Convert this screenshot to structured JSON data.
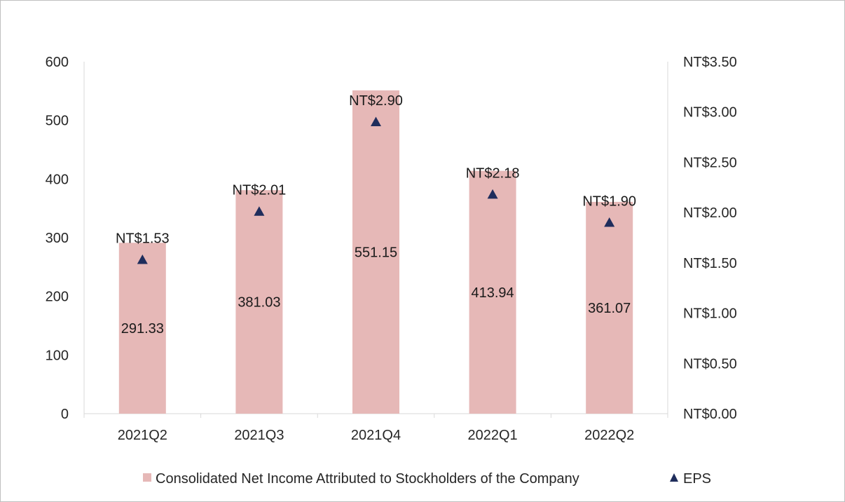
{
  "chart_data": {
    "type": "bar",
    "title": "",
    "categories": [
      "2021Q2",
      "2021Q3",
      "2021Q4",
      "2022Q1",
      "2022Q2"
    ],
    "series": [
      {
        "name": "Consolidated Net Income Attributed to Stockholders of the Company",
        "type": "bar",
        "axis": "left",
        "color": "#e6b8b7",
        "values": [
          291.33,
          381.03,
          551.15,
          413.94,
          361.07
        ],
        "labels": [
          "291.33",
          "381.03",
          "551.15",
          "413.94",
          "361.07"
        ]
      },
      {
        "name": "EPS",
        "type": "scatter",
        "marker": "triangle",
        "axis": "right",
        "color": "#1f2d5c",
        "values": [
          1.53,
          2.01,
          2.9,
          2.18,
          1.9
        ],
        "labels": [
          "NT$1.53",
          "NT$2.01",
          "NT$2.90",
          "NT$2.18",
          "NT$1.90"
        ]
      }
    ],
    "y_left": {
      "lim": [
        0,
        600
      ],
      "ticks": [
        0,
        100,
        200,
        300,
        400,
        500,
        600
      ],
      "tick_labels": [
        "0",
        "100",
        "200",
        "300",
        "400",
        "500",
        "600"
      ]
    },
    "y_right": {
      "lim": [
        0,
        3.5
      ],
      "ticks": [
        0,
        0.5,
        1.0,
        1.5,
        2.0,
        2.5,
        3.0,
        3.5
      ],
      "tick_labels": [
        "NT$0.00",
        "NT$0.50",
        "NT$1.00",
        "NT$1.50",
        "NT$2.00",
        "NT$2.50",
        "NT$3.00",
        "NT$3.50"
      ]
    },
    "grid": false,
    "legend": "bottom",
    "axis_color": "#d9d9d9"
  }
}
